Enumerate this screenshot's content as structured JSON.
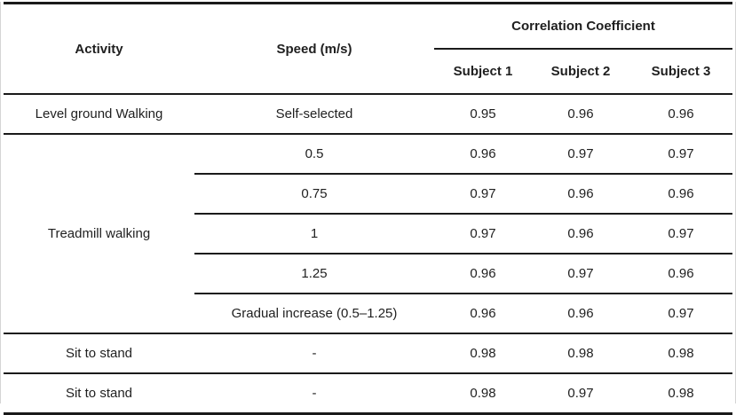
{
  "colors": {
    "text": "#1f1f1f",
    "border": "#1a1a1a",
    "page_edge": "#d5d5d5",
    "background": "#ffffff"
  },
  "table": {
    "header": {
      "activity": "Activity",
      "speed": "Speed (m/s)",
      "correlation_group": "Correlation Coefficient",
      "subject1": "Subject 1",
      "subject2": "Subject 2",
      "subject3": "Subject 3"
    },
    "rows": [
      {
        "activity": "Level ground Walking",
        "speed": "Self-selected",
        "s1": "0.95",
        "s2": "0.96",
        "s3": "0.96"
      },
      {
        "activity": "Treadmill walking",
        "speed": "0.5",
        "s1": "0.96",
        "s2": "0.97",
        "s3": "0.97"
      },
      {
        "speed": "0.75",
        "s1": "0.97",
        "s2": "0.96",
        "s3": "0.96"
      },
      {
        "speed": "1",
        "s1": "0.97",
        "s2": "0.96",
        "s3": "0.97"
      },
      {
        "speed": "1.25",
        "s1": "0.96",
        "s2": "0.97",
        "s3": "0.96"
      },
      {
        "speed": "Gradual increase (0.5–1.25)",
        "s1": "0.96",
        "s2": "0.96",
        "s3": "0.97"
      },
      {
        "activity": "Sit to stand",
        "speed": "-",
        "s1": "0.98",
        "s2": "0.98",
        "s3": "0.98"
      },
      {
        "activity": "Sit to stand",
        "speed": "-",
        "s1": "0.98",
        "s2": "0.97",
        "s3": "0.98"
      }
    ]
  },
  "chart_data": {
    "type": "table",
    "columns": [
      "Activity",
      "Speed (m/s)",
      "Subject 1",
      "Subject 2",
      "Subject 3"
    ],
    "column_group": {
      "label": "Correlation Coefficient",
      "spans": [
        "Subject 1",
        "Subject 2",
        "Subject 3"
      ]
    },
    "rows": [
      [
        "Level ground Walking",
        "Self-selected",
        0.95,
        0.96,
        0.96
      ],
      [
        "Treadmill walking",
        "0.5",
        0.96,
        0.97,
        0.97
      ],
      [
        "Treadmill walking",
        "0.75",
        0.97,
        0.96,
        0.96
      ],
      [
        "Treadmill walking",
        "1",
        0.97,
        0.96,
        0.97
      ],
      [
        "Treadmill walking",
        "1.25",
        0.96,
        0.97,
        0.96
      ],
      [
        "Treadmill walking",
        "Gradual increase (0.5–1.25)",
        0.96,
        0.96,
        0.97
      ],
      [
        "Sit to stand",
        "-",
        0.98,
        0.98,
        0.98
      ],
      [
        "Sit to stand",
        "-",
        0.98,
        0.97,
        0.98
      ]
    ]
  }
}
